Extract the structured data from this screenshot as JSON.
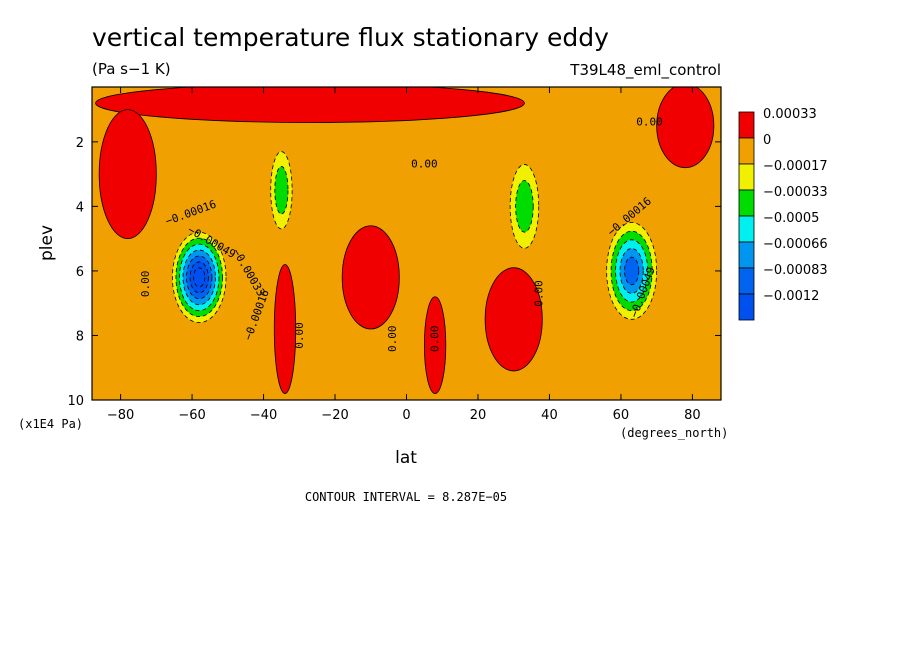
{
  "chart_data": {
    "type": "heatmap",
    "title": "vertical temperature flux stationary eddy",
    "units": "(Pa s−1 K)",
    "run_label": "T39L48_eml_control",
    "xlabel": "lat",
    "xunits": "(degrees_north)",
    "ylabel": "plev",
    "yunits": "(x1E4 Pa)",
    "footer": "CONTOUR INTERVAL = 8.287E−05",
    "xlim": [
      -88,
      88
    ],
    "ylim": [
      10,
      0.3
    ],
    "xticks": [
      -80,
      -60,
      -40,
      -20,
      0,
      20,
      40,
      60,
      80
    ],
    "xtick_labels": [
      "−80",
      "−60",
      "−40",
      "−20",
      "0",
      "20",
      "40",
      "60",
      "80"
    ],
    "yticks": [
      2,
      4,
      6,
      8,
      10
    ],
    "ytick_labels": [
      "2",
      "4",
      "6",
      "8",
      "10"
    ],
    "grid": false,
    "legend_position": "right",
    "background_color": "#f0a000",
    "levels": [
      {
        "label": "0.00033",
        "color": "#f00000"
      },
      {
        "label": "0",
        "color": "#f0a000"
      },
      {
        "label": "−0.00017",
        "color": "#f0f000"
      },
      {
        "label": "−0.00033",
        "color": "#00dc00"
      },
      {
        "label": "−0.0005",
        "color": "#00f0f0"
      },
      {
        "label": "−0.00066",
        "color": "#0096f0"
      },
      {
        "label": "−0.00083",
        "color": "#0064f0"
      },
      {
        "label": "−0.0012",
        "color": "#0050f0"
      }
    ],
    "features": [
      {
        "type": "negative",
        "center": [
          -58,
          6.2
        ],
        "spread": [
          7.5,
          1.4
        ],
        "amplitude": -0.00118,
        "fill": [
          0,
          1,
          2,
          3,
          4,
          5,
          6
        ]
      },
      {
        "type": "negative",
        "center": [
          63,
          6.0
        ],
        "spread": [
          7,
          1.5
        ],
        "amplitude": -0.00066,
        "fill": [
          0,
          1,
          2,
          3,
          4
        ]
      },
      {
        "type": "positive",
        "center": [
          -27,
          0.8
        ],
        "spread": [
          60,
          0.6
        ],
        "amplitude": 0.0004,
        "fill": [
          0
        ]
      },
      {
        "type": "positive",
        "center": [
          -10,
          6.2
        ],
        "spread": [
          8,
          1.6
        ],
        "amplitude": 0.0004,
        "fill": [
          0
        ]
      },
      {
        "type": "positive",
        "center": [
          30,
          7.5
        ],
        "spread": [
          8,
          1.6
        ],
        "amplitude": 0.0004,
        "fill": [
          0
        ]
      },
      {
        "type": "positive",
        "center": [
          8,
          8.3
        ],
        "spread": [
          3,
          1.5
        ],
        "amplitude": 0.0004,
        "fill": [
          0
        ]
      },
      {
        "type": "positive",
        "center": [
          -34,
          7.8
        ],
        "spread": [
          3,
          2
        ],
        "amplitude": 0.0004,
        "fill": [
          0
        ]
      },
      {
        "type": "positive",
        "center": [
          -78,
          3
        ],
        "spread": [
          8,
          2
        ],
        "amplitude": 0.0004,
        "fill": [
          0
        ]
      },
      {
        "type": "positive",
        "center": [
          78,
          1.5
        ],
        "spread": [
          8,
          1.3
        ],
        "amplitude": 0.0004,
        "fill": [
          0
        ]
      },
      {
        "type": "weak",
        "center": [
          -35,
          3.5
        ],
        "spread": [
          3,
          1.2
        ],
        "amplitude": -0.0002,
        "fill": [
          0,
          1
        ]
      },
      {
        "type": "weak",
        "center": [
          33,
          4
        ],
        "spread": [
          4,
          1.3
        ],
        "amplitude": -0.0002,
        "fill": [
          0,
          1
        ]
      }
    ],
    "contour_labels": [
      {
        "text": "−0.00016",
        "x": -60,
        "y": 4.3,
        "angle": -20
      },
      {
        "text": "−0.00049",
        "x": -55,
        "y": 5.2,
        "angle": 30
      },
      {
        "text": "−0.00033",
        "x": -45,
        "y": 6.1,
        "angle": 60
      },
      {
        "text": "−0.00016",
        "x": -41,
        "y": 7.4,
        "angle": -70
      },
      {
        "text": "0.00",
        "x": -72,
        "y": 6.4,
        "angle": -90
      },
      {
        "text": "0.00",
        "x": -29,
        "y": 8.0,
        "angle": -90
      },
      {
        "text": "0.00",
        "x": 5,
        "y": 2.8,
        "angle": 0
      },
      {
        "text": "0.00",
        "x": -3,
        "y": 8.1,
        "angle": -90
      },
      {
        "text": "0.00",
        "x": 9,
        "y": 8.1,
        "angle": -90
      },
      {
        "text": "0.00",
        "x": 38,
        "y": 6.7,
        "angle": -90
      },
      {
        "text": "0.00",
        "x": 68,
        "y": 1.5,
        "angle": 0
      },
      {
        "text": "−0.00016",
        "x": 63,
        "y": 4.4,
        "angle": -40
      },
      {
        "text": "−0.00049",
        "x": 67,
        "y": 6.7,
        "angle": -70
      }
    ]
  }
}
